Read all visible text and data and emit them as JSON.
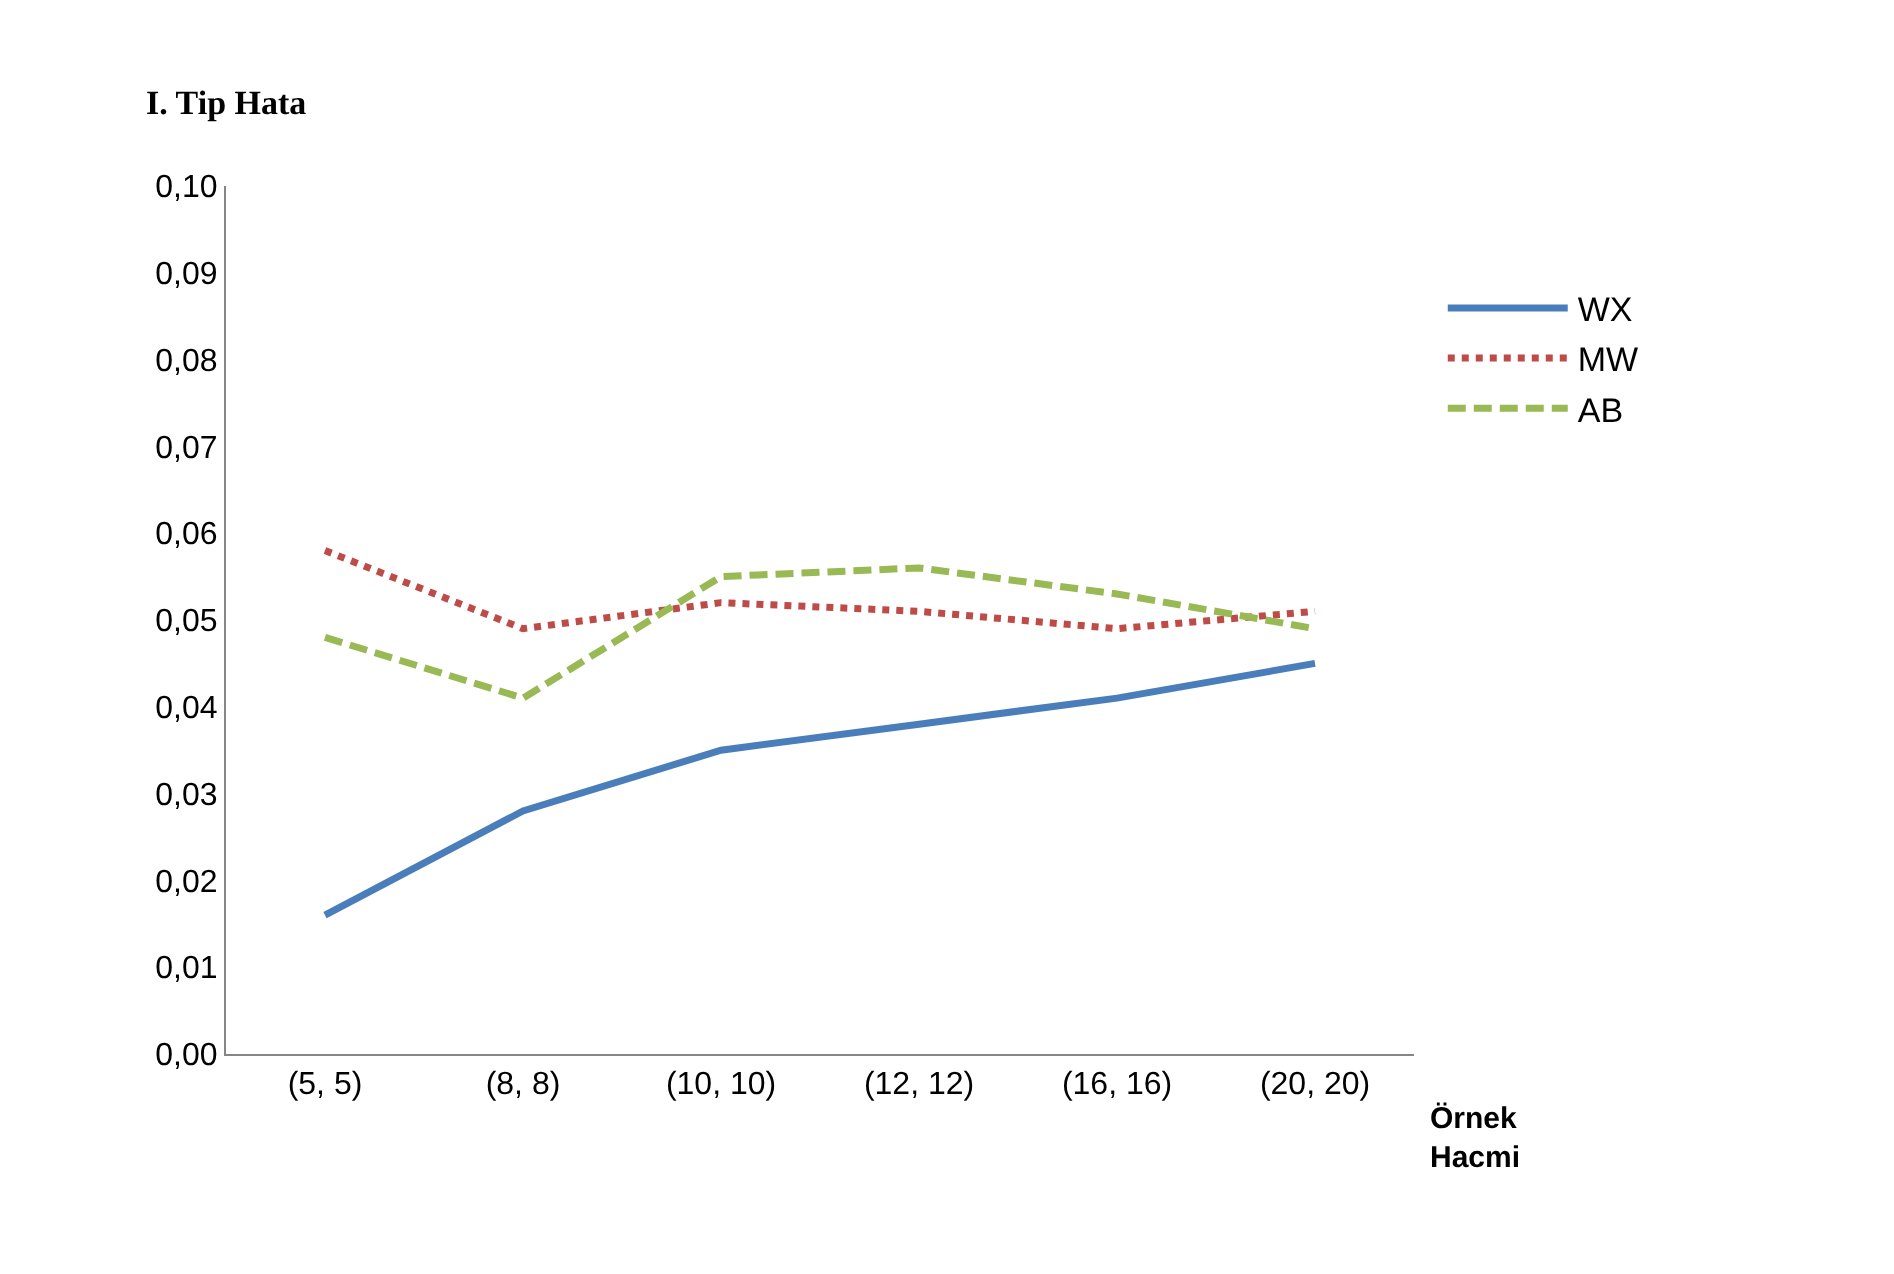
{
  "chart_data": {
    "type": "line",
    "ylabel": "I. Tip Hata",
    "xlabel": "Örnek\nHacmi",
    "categories": [
      "(5, 5)",
      "(8, 8)",
      "(10, 10)",
      "(12, 12)",
      "(16, 16)",
      "(20, 20)"
    ],
    "series": [
      {
        "name": "WX",
        "color": "#4a7ebb",
        "line_style": "solid",
        "values": [
          0.016,
          0.028,
          0.035,
          0.038,
          0.041,
          0.045
        ]
      },
      {
        "name": "MW",
        "color": "#be4b48",
        "line_style": "dotted",
        "values": [
          0.058,
          0.049,
          0.052,
          0.051,
          0.049,
          0.051
        ]
      },
      {
        "name": "AB",
        "color": "#98b954",
        "line_style": "dashed",
        "values": [
          0.048,
          0.041,
          0.055,
          0.056,
          0.053,
          0.049
        ]
      }
    ],
    "ylim": [
      0,
      0.1
    ],
    "yticks": [
      {
        "value": 0,
        "label": "0,00"
      },
      {
        "value": 0.01,
        "label": "0,01"
      },
      {
        "value": 0.02,
        "label": "0,02"
      },
      {
        "value": 0.03,
        "label": "0,03"
      },
      {
        "value": 0.04,
        "label": "0,04"
      },
      {
        "value": 0.05,
        "label": "0,05"
      },
      {
        "value": 0.06,
        "label": "0,06"
      },
      {
        "value": 0.07,
        "label": "0,07"
      },
      {
        "value": 0.08,
        "label": "0,08"
      },
      {
        "value": 0.09,
        "label": "0,09"
      },
      {
        "value": 0.1,
        "label": "0,10"
      }
    ],
    "legend": "top right",
    "marker": "none"
  }
}
